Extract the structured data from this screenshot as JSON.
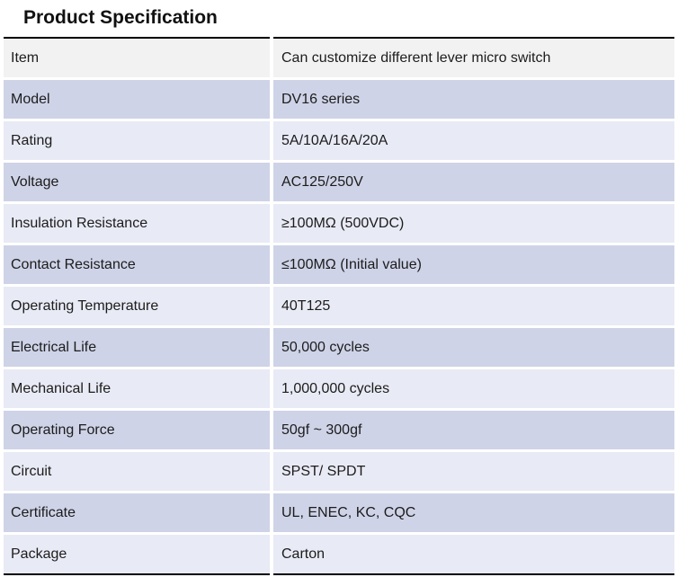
{
  "page": {
    "title": "Product Specification"
  },
  "table": {
    "rows": [
      {
        "label": "Item",
        "value": "Can customize different lever micro switch"
      },
      {
        "label": "Model",
        "value": "DV16 series"
      },
      {
        "label": "Rating",
        "value": "5A/10A/16A/20A"
      },
      {
        "label": "Voltage",
        "value": "AC125/250V"
      },
      {
        "label": "Insulation Resistance",
        "value": "≥100MΩ (500VDC)"
      },
      {
        "label": "Contact Resistance",
        "value": "≤100MΩ (Initial value)"
      },
      {
        "label": "Operating Temperature",
        "value": "40T125"
      },
      {
        "label": "Electrical Life",
        "value": "50,000 cycles"
      },
      {
        "label": "Mechanical Life",
        "value": "1,000,000 cycles"
      },
      {
        "label": "Operating Force",
        "value": "50gf ~ 300gf"
      },
      {
        "label": "Circuit",
        "value": "SPST/ SPDT"
      },
      {
        "label": "Certificate",
        "value": "UL, ENEC, KC, CQC"
      },
      {
        "label": "Package",
        "value": "Carton"
      }
    ],
    "colors": {
      "header_row_bg": "#f2f2f2",
      "stripe_dark": "#ced3e7",
      "stripe_light": "#e8eaf5",
      "border": "#000000",
      "text": "#1c1c1c"
    }
  }
}
